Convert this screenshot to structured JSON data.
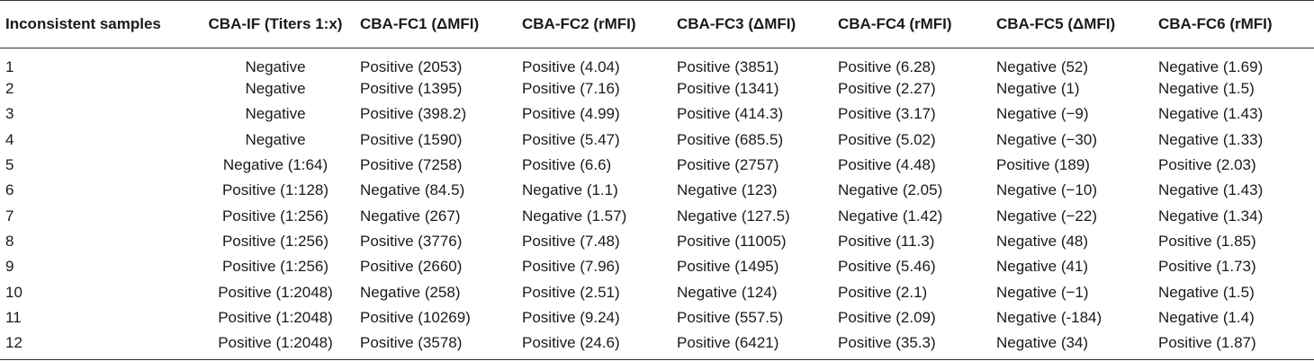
{
  "table": {
    "headers": [
      "Inconsistent samples",
      "CBA-IF (Titers 1:x)",
      "CBA-FC1 (ΔMFI)",
      "CBA-FC2 (rMFI)",
      "CBA-FC3 (ΔMFI)",
      "CBA-FC4 (rMFI)",
      "CBA-FC5 (ΔMFI)",
      "CBA-FC6 (rMFI)"
    ],
    "rows": [
      [
        "1",
        "Negative",
        "Positive (2053)",
        "Positive (4.04)",
        "Positive (3851)",
        "Positive (6.28)",
        "Negative (52)",
        "Negative (1.69)"
      ],
      [
        "2",
        "Negative",
        "Positive (1395)",
        "Positive (7.16)",
        "Positive (1341)",
        "Positive (2.27)",
        "Negative (1)",
        "Negative (1.5)"
      ],
      [
        "3",
        "Negative",
        "Positive (398.2)",
        "Positive (4.99)",
        "Positive (414.3)",
        "Positive (3.17)",
        "Negative (−9)",
        "Negative (1.43)"
      ],
      [
        "4",
        "Negative",
        "Positive (1590)",
        "Positive (5.47)",
        "Positive (685.5)",
        "Positive (5.02)",
        "Negative (−30)",
        "Negative (1.33)"
      ],
      [
        "5",
        "Negative (1:64)",
        "Positive (7258)",
        "Positive (6.6)",
        "Positive (2757)",
        "Positive (4.48)",
        "Positive (189)",
        "Positive (2.03)"
      ],
      [
        "6",
        "Positive (1:128)",
        "Negative (84.5)",
        "Negative (1.1)",
        "Negative (123)",
        "Negative (2.05)",
        "Negative (−10)",
        "Negative (1.43)"
      ],
      [
        "7",
        "Positive (1:256)",
        "Negative (267)",
        "Negative (1.57)",
        "Negative (127.5)",
        "Negative (1.42)",
        "Negative (−22)",
        "Negative (1.34)"
      ],
      [
        "8",
        "Positive (1:256)",
        "Positive (3776)",
        "Positive (7.48)",
        "Positive (11005)",
        "Positive (11.3)",
        "Negative (48)",
        "Positive (1.85)"
      ],
      [
        "9",
        "Positive (1:256)",
        "Positive (2660)",
        "Positive (7.96)",
        "Positive (1495)",
        "Positive (5.46)",
        "Negative (41)",
        "Positive (1.73)"
      ],
      [
        "10",
        "Positive (1:2048)",
        "Negative (258)",
        "Positive (2.51)",
        "Negative (124)",
        "Positive (2.1)",
        "Negative (−1)",
        "Negative (1.5)"
      ],
      [
        "11",
        "Positive (1:2048)",
        "Positive (10269)",
        "Positive (9.24)",
        "Positive (557.5)",
        "Positive (2.09)",
        "Negative (-184)",
        "Negative (1.4)"
      ],
      [
        "12",
        "Positive (1:2048)",
        "Positive (3578)",
        "Positive (24.6)",
        "Positive (6421)",
        "Positive (35.3)",
        "Negative (34)",
        "Positive (1.87)"
      ]
    ]
  }
}
